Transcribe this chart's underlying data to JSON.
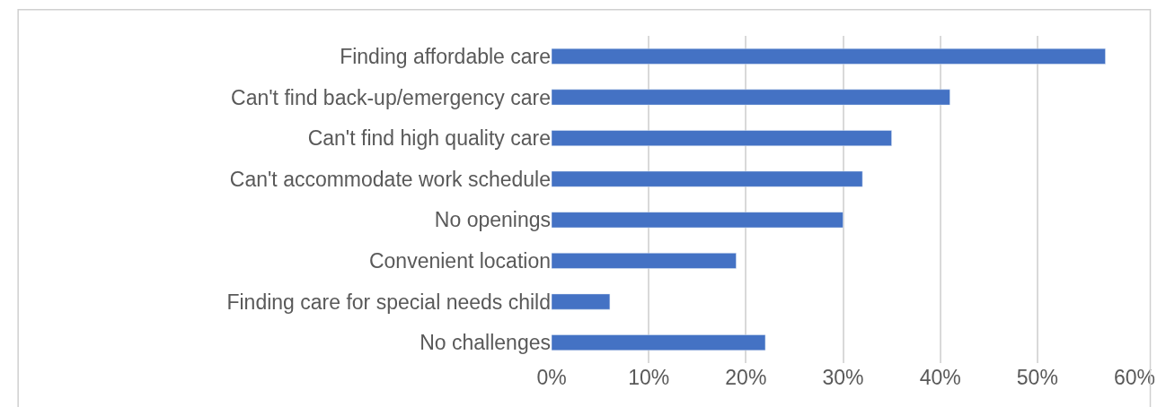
{
  "chart_data": {
    "type": "bar",
    "orientation": "horizontal",
    "categories": [
      "Finding affordable care",
      "Can't find back-up/emergency care",
      "Can't find high quality care",
      "Can't accommodate work schedule",
      "No openings",
      "Convenient location",
      "Finding care for special needs child",
      "No challenges"
    ],
    "values": [
      57,
      41,
      35,
      32,
      30,
      19,
      6,
      22
    ],
    "color": "#4472c4",
    "xlim": [
      0,
      60
    ],
    "xticks": [
      {
        "value": 0,
        "label": "0%"
      },
      {
        "value": 10,
        "label": "10%"
      },
      {
        "value": 20,
        "label": "20%"
      },
      {
        "value": 30,
        "label": "30%"
      },
      {
        "value": 40,
        "label": "40%"
      },
      {
        "value": 50,
        "label": "50%"
      },
      {
        "value": 60,
        "label": "60%"
      }
    ],
    "grid": "x"
  }
}
